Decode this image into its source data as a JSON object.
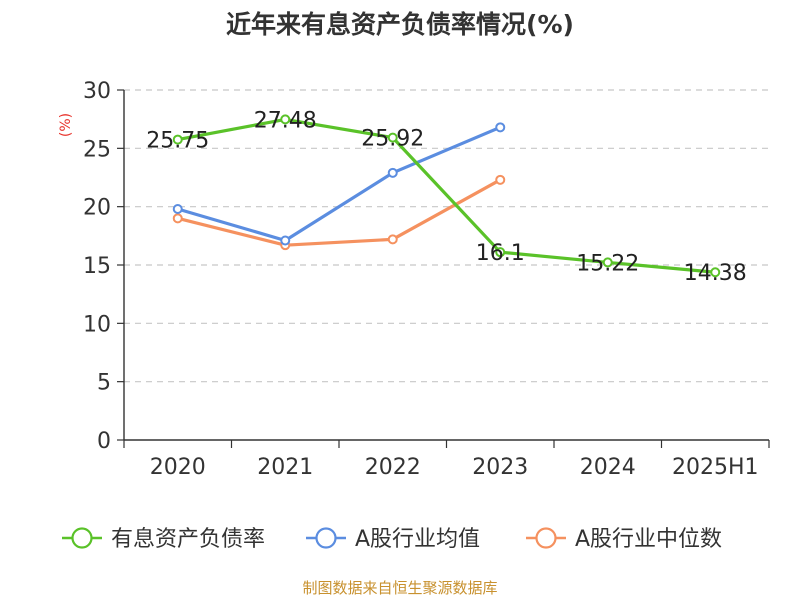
{
  "chart_data": {
    "type": "line",
    "title": "近年来有息资产负债率情况(%)",
    "ylabel": "(%)",
    "categories": [
      "2020",
      "2021",
      "2022",
      "2023",
      "2024",
      "2025H1"
    ],
    "ylim": [
      0,
      30
    ],
    "yticks": [
      0,
      5,
      10,
      15,
      20,
      25,
      30
    ],
    "grid": true,
    "legend_position": "bottom",
    "series": [
      {
        "name": "有息资产负债率",
        "color": "#5ac229",
        "labeled": true,
        "values": [
          25.75,
          27.48,
          25.92,
          16.1,
          15.22,
          14.38
        ],
        "labels": [
          "25.75",
          "27.48",
          "25.92",
          "16.1",
          "15.22",
          "14.38"
        ]
      },
      {
        "name": "A股行业均值",
        "color": "#5b8de0",
        "labeled": false,
        "values": [
          19.8,
          17.1,
          22.9,
          26.8,
          null,
          null
        ]
      },
      {
        "name": "A股行业中位数",
        "color": "#f5915f",
        "labeled": false,
        "values": [
          19.0,
          16.7,
          17.2,
          22.3,
          null,
          null
        ]
      }
    ],
    "source": "制图数据来自恒生聚源数据库"
  }
}
